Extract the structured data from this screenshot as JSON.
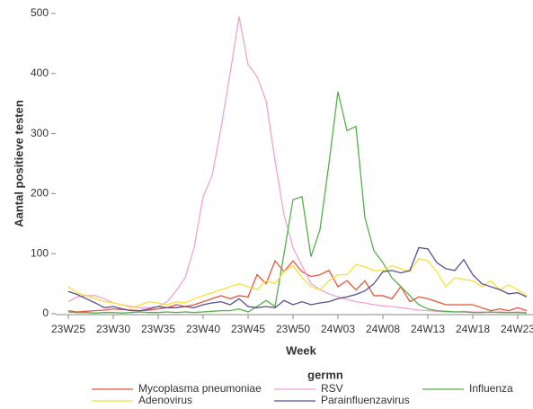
{
  "chart_data": {
    "type": "line",
    "y_label": "Aantal positieve testen",
    "x_label": "Week",
    "legend_title": "germn",
    "legend": "bottom",
    "categories": [
      "23W25",
      null,
      null,
      null,
      null,
      "23W30",
      null,
      null,
      null,
      null,
      "23W35",
      null,
      null,
      null,
      null,
      "23W40",
      null,
      null,
      null,
      null,
      "23W45",
      null,
      null,
      null,
      null,
      "23W50",
      null,
      null,
      null,
      null,
      "24W03",
      null,
      null,
      null,
      null,
      "24W08",
      null,
      null,
      null,
      null,
      "24W13",
      null,
      null,
      null,
      null,
      "24W18",
      null,
      null,
      null,
      null,
      "24W23",
      null
    ],
    "ylim": [
      0,
      500
    ],
    "yticks": [
      0,
      100,
      200,
      300,
      400,
      500
    ],
    "series": [
      {
        "name": "Mycoplasma pneumoniae",
        "color": "#e8553a",
        "values": [
          5,
          3,
          4,
          5,
          6,
          8,
          7,
          6,
          5,
          6,
          8,
          10,
          15,
          12,
          15,
          20,
          25,
          30,
          25,
          30,
          28,
          65,
          50,
          88,
          70,
          88,
          70,
          62,
          65,
          72,
          45,
          55,
          40,
          55,
          30,
          30,
          25,
          45,
          20,
          28,
          25,
          20,
          15,
          15,
          15,
          15,
          10,
          5,
          8,
          5,
          10,
          5
        ]
      },
      {
        "name": "RSV",
        "color": "#f0a3d0",
        "values": [
          20,
          28,
          30,
          30,
          25,
          18,
          15,
          12,
          10,
          10,
          12,
          20,
          38,
          60,
          110,
          195,
          230,
          310,
          400,
          495,
          415,
          395,
          355,
          255,
          165,
          110,
          80,
          50,
          40,
          33,
          28,
          24,
          20,
          18,
          15,
          13,
          12,
          10,
          8,
          6,
          5,
          4,
          3,
          3,
          4,
          3,
          3,
          2,
          3,
          2,
          3,
          2
        ]
      },
      {
        "name": "Influenza",
        "color": "#55b04a",
        "values": [
          3,
          2,
          2,
          1,
          2,
          2,
          1,
          2,
          3,
          2,
          2,
          3,
          2,
          3,
          2,
          3,
          4,
          5,
          5,
          8,
          3,
          12,
          22,
          12,
          100,
          190,
          195,
          95,
          140,
          250,
          370,
          305,
          312,
          160,
          105,
          85,
          60,
          45,
          30,
          15,
          8,
          5,
          4,
          3,
          3,
          2,
          2,
          3,
          2,
          2,
          2,
          1
        ]
      },
      {
        "name": "Adenovirus",
        "color": "#f7e03a",
        "values": [
          45,
          35,
          30,
          25,
          20,
          18,
          15,
          10,
          15,
          20,
          18,
          15,
          20,
          18,
          25,
          30,
          35,
          40,
          45,
          50,
          45,
          40,
          55,
          50,
          70,
          80,
          60,
          45,
          40,
          55,
          65,
          65,
          82,
          78,
          72,
          72,
          80,
          75,
          70,
          92,
          88,
          70,
          45,
          60,
          57,
          55,
          45,
          55,
          40,
          48,
          40,
          30
        ]
      },
      {
        "name": "Parainfluenzavirus",
        "color": "#5c4d8f",
        "values": [
          37,
          32,
          25,
          18,
          10,
          12,
          8,
          5,
          5,
          8,
          12,
          10,
          10,
          12,
          10,
          15,
          18,
          20,
          15,
          25,
          12,
          10,
          12,
          10,
          22,
          15,
          20,
          15,
          18,
          20,
          25,
          28,
          32,
          38,
          50,
          70,
          72,
          68,
          72,
          110,
          108,
          85,
          75,
          72,
          90,
          65,
          50,
          45,
          40,
          33,
          35,
          28
        ]
      }
    ]
  }
}
